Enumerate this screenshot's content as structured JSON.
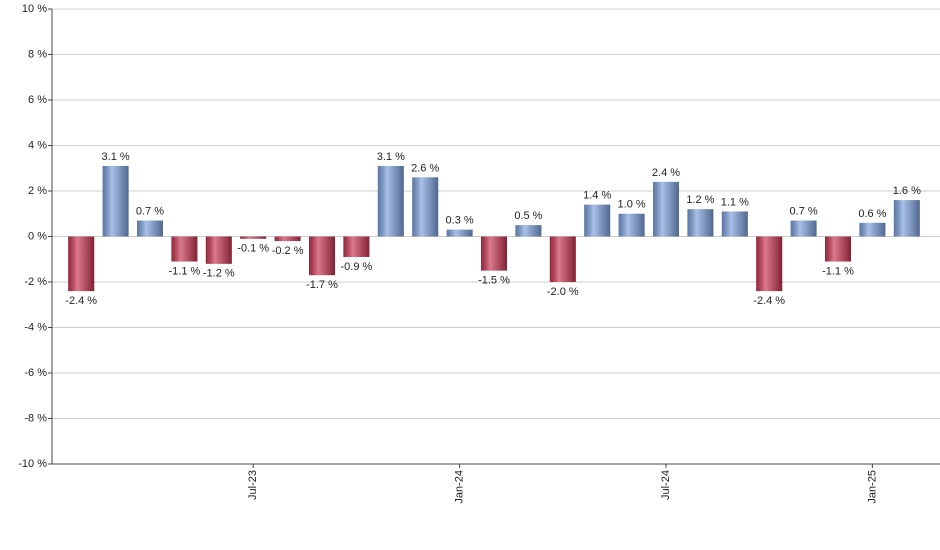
{
  "chart_data": {
    "type": "bar",
    "categories": [
      null,
      null,
      null,
      null,
      null,
      "Jul-23",
      null,
      null,
      null,
      null,
      null,
      "Jan-24",
      null,
      null,
      null,
      null,
      null,
      "Jul-24",
      null,
      null,
      null,
      null,
      null,
      "Jan-25",
      null
    ],
    "values": [
      -2.4,
      3.1,
      0.7,
      -1.1,
      -1.2,
      -0.1,
      -0.2,
      -1.7,
      -0.9,
      3.1,
      2.6,
      0.3,
      -1.5,
      0.5,
      -2.0,
      1.4,
      1.0,
      2.4,
      1.2,
      1.1,
      -2.4,
      0.7,
      -1.1,
      0.6,
      1.6
    ],
    "value_labels": [
      "-2.4 %",
      "3.1 %",
      "0.7 %",
      "-1.1 %",
      "-1.2 %",
      "-0.1 %",
      "-0.2 %",
      "-1.7 %",
      "-0.9 %",
      "3.1 %",
      "2.6 %",
      "0.3 %",
      "-1.5 %",
      "0.5 %",
      "-2.0 %",
      "1.4 %",
      "1.0 %",
      "2.4 %",
      "1.2 %",
      "1.1 %",
      "-2.4 %",
      "0.7 %",
      "-1.1 %",
      "0.6 %",
      "1.6 %"
    ],
    "positive_color": "#7b9fdc",
    "negative_color": "#c8334f",
    "ylim": [
      -10,
      10
    ],
    "yticks": [
      {
        "value": -10,
        "label": "-10 %"
      },
      {
        "value": -8,
        "label": "-8 %"
      },
      {
        "value": -6,
        "label": "-6 %"
      },
      {
        "value": -4,
        "label": "-4 %"
      },
      {
        "value": -2,
        "label": "-2 %"
      },
      {
        "value": 0,
        "label": "0 %"
      },
      {
        "value": 2,
        "label": "2 %"
      },
      {
        "value": 4,
        "label": "4 %"
      },
      {
        "value": 6,
        "label": "6 %"
      },
      {
        "value": 8,
        "label": "8 %"
      },
      {
        "value": 10,
        "label": "10 %"
      }
    ],
    "grid": true
  }
}
